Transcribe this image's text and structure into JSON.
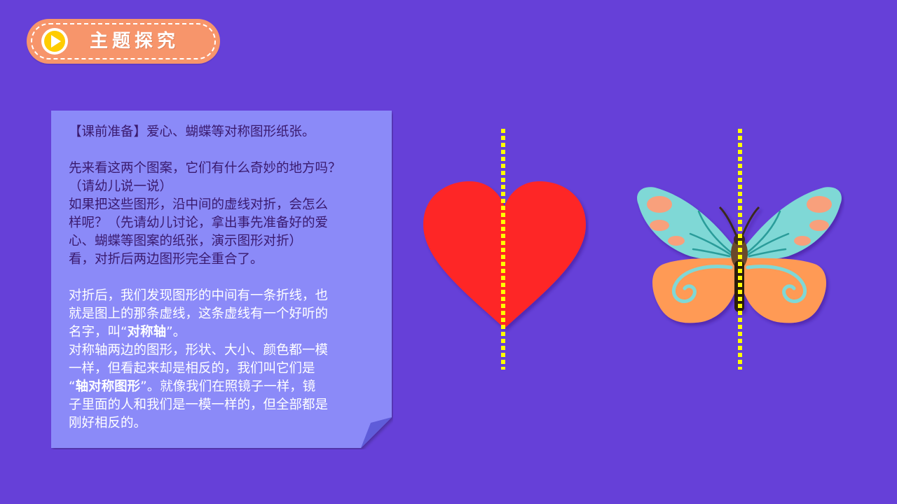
{
  "header": {
    "title": "主题探究",
    "icon": "play-icon",
    "pill_color": "#f7956b",
    "icon_color": "#ffcc00"
  },
  "note": {
    "prep": "【课前准备】爱心、蝴蝶等对称图形纸张。",
    "para1": [
      "先来看这两个图案，它们有什么奇妙的地方吗？",
      "（请幼儿说一说）",
      "如果把这些图形，沿中间的虚线对折，会怎么",
      "样呢？（先请幼儿讨论，拿出事先准备好的爱",
      "心、蝴蝶等图案的纸张，演示图形对折）",
      "看，对折后两边图形完全重合了。"
    ],
    "para2_lines": [
      "对折后，我们发现图形的中间有一条折线，也",
      "就是图上的那条虚线，这条虚线有一个好听的"
    ],
    "para2_line3_pre": "名字，叫“",
    "para2_term1": "对称轴",
    "para2_line3_post": "”。",
    "para3_lines": [
      "对称轴两边的图形，形状、大小、颜色都一模",
      "一样，但看起来却是相反的，我们叫它们是"
    ],
    "para3_line3_pre": "“",
    "para3_term2": "轴对称图形",
    "para3_line3_post": "”。就像我们在照镜子一样，镜",
    "para3_tail": [
      "子里面的人和我们是一模一样的，但全部都是",
      "刚好相反的。"
    ],
    "paper_color": "#8b8af8",
    "fold_color": "#5f5cd9"
  },
  "figures": {
    "heart": {
      "color": "#fe2626",
      "icon": "heart-icon"
    },
    "butterfly": {
      "icon": "butterfly-icon",
      "wing_top": "#7fd8d6",
      "wing_bottom": "#ff9a55",
      "spot": "#f8a07c"
    },
    "axis_color": "#ffff00"
  }
}
